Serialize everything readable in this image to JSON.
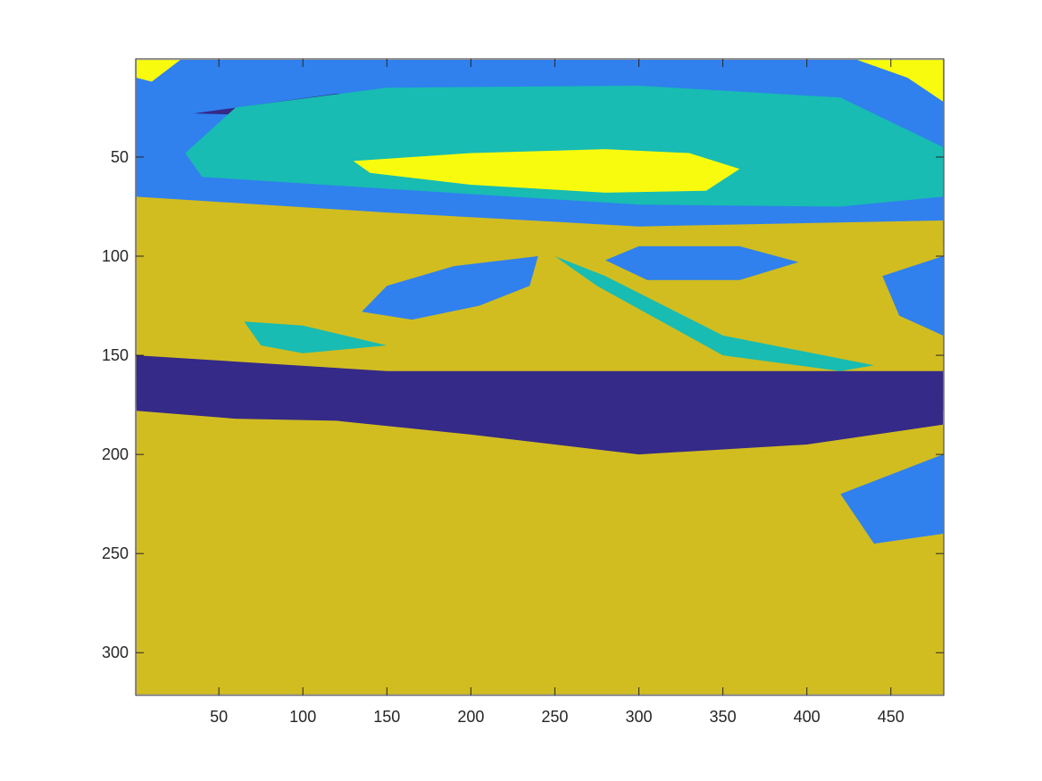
{
  "chart_data": {
    "type": "heatmap",
    "title": "",
    "xlabel": "",
    "ylabel": "",
    "xlim": [
      0.5,
      481.5
    ],
    "ylim": [
      0.5,
      321.5
    ],
    "y_direction": "reverse",
    "xticks": [
      50,
      100,
      150,
      200,
      250,
      300,
      350,
      400,
      450
    ],
    "yticks": [
      50,
      100,
      150,
      200,
      250,
      300
    ],
    "xtick_labels": [
      "50",
      "100",
      "150",
      "200",
      "250",
      "300",
      "350",
      "400",
      "450"
    ],
    "ytick_labels": [
      "50",
      "100",
      "150",
      "200",
      "250",
      "300"
    ],
    "grid": false,
    "colormap": "parula",
    "levels": [
      1,
      2,
      3,
      4,
      5
    ],
    "level_colors": [
      "#352a87",
      "#3080ee",
      "#18bcb2",
      "#d1bd20",
      "#f9fb0e"
    ],
    "regions": [
      {
        "level": 1,
        "polygon": [
          [
            1,
            1
          ],
          [
            481,
            1
          ],
          [
            481,
            321
          ],
          [
            1,
            321
          ]
        ]
      },
      {
        "level": 2,
        "polygon": [
          [
            1,
            1
          ],
          [
            481,
            1
          ],
          [
            481,
            95
          ],
          [
            300,
            88
          ],
          [
            150,
            80
          ],
          [
            1,
            72
          ]
        ]
      },
      {
        "level": 4,
        "polygon": [
          [
            1,
            70
          ],
          [
            150,
            78
          ],
          [
            300,
            85
          ],
          [
            481,
            82
          ],
          [
            481,
            170
          ],
          [
            300,
            168
          ],
          [
            150,
            160
          ],
          [
            1,
            160
          ]
        ]
      },
      {
        "level": 4,
        "polygon": [
          [
            1,
            178
          ],
          [
            60,
            182
          ],
          [
            120,
            183
          ],
          [
            200,
            190
          ],
          [
            300,
            200
          ],
          [
            400,
            195
          ],
          [
            481,
            185
          ],
          [
            481,
            321
          ],
          [
            1,
            321
          ]
        ]
      },
      {
        "level": 1,
        "polygon": [
          [
            1,
            150
          ],
          [
            150,
            158
          ],
          [
            300,
            158
          ],
          [
            481,
            158
          ],
          [
            481,
            178
          ],
          [
            300,
            195
          ],
          [
            200,
            186
          ],
          [
            100,
            180
          ],
          [
            1,
            176
          ]
        ]
      },
      {
        "level": 1,
        "polygon": [
          [
            35,
            28
          ],
          [
            120,
            18
          ],
          [
            230,
            20
          ],
          [
            310,
            22
          ],
          [
            230,
            26
          ],
          [
            120,
            30
          ]
        ]
      },
      {
        "level": 3,
        "polygon": [
          [
            30,
            48
          ],
          [
            60,
            25
          ],
          [
            150,
            15
          ],
          [
            300,
            14
          ],
          [
            420,
            20
          ],
          [
            481,
            45
          ],
          [
            481,
            70
          ],
          [
            420,
            75
          ],
          [
            300,
            74
          ],
          [
            150,
            66
          ],
          [
            40,
            60
          ]
        ]
      },
      {
        "level": 5,
        "polygon": [
          [
            130,
            52
          ],
          [
            200,
            48
          ],
          [
            280,
            46
          ],
          [
            330,
            48
          ],
          [
            360,
            56
          ],
          [
            340,
            67
          ],
          [
            280,
            68
          ],
          [
            200,
            64
          ],
          [
            140,
            58
          ]
        ]
      },
      {
        "level": 5,
        "polygon": [
          [
            1,
            1
          ],
          [
            27,
            1
          ],
          [
            10,
            12
          ],
          [
            1,
            10
          ]
        ]
      },
      {
        "level": 5,
        "polygon": [
          [
            430,
            1
          ],
          [
            481,
            1
          ],
          [
            481,
            22
          ],
          [
            460,
            10
          ]
        ]
      },
      {
        "level": 2,
        "polygon": [
          [
            135,
            128
          ],
          [
            150,
            115
          ],
          [
            190,
            105
          ],
          [
            240,
            100
          ],
          [
            235,
            115
          ],
          [
            205,
            125
          ],
          [
            165,
            132
          ]
        ]
      },
      {
        "level": 2,
        "polygon": [
          [
            280,
            102
          ],
          [
            300,
            95
          ],
          [
            360,
            95
          ],
          [
            395,
            103
          ],
          [
            360,
            112
          ],
          [
            305,
            112
          ]
        ]
      },
      {
        "level": 3,
        "polygon": [
          [
            65,
            133
          ],
          [
            100,
            135
          ],
          [
            150,
            145
          ],
          [
            100,
            149
          ],
          [
            75,
            145
          ]
        ]
      },
      {
        "level": 2,
        "polygon": [
          [
            445,
            110
          ],
          [
            481,
            100
          ],
          [
            481,
            140
          ],
          [
            455,
            130
          ]
        ]
      },
      {
        "level": 2,
        "polygon": [
          [
            420,
            220
          ],
          [
            481,
            200
          ],
          [
            481,
            240
          ],
          [
            440,
            245
          ]
        ]
      },
      {
        "level": 3,
        "polygon": [
          [
            250,
            100
          ],
          [
            280,
            110
          ],
          [
            350,
            140
          ],
          [
            440,
            155
          ],
          [
            420,
            158
          ],
          [
            350,
            150
          ],
          [
            275,
            115
          ]
        ]
      }
    ]
  }
}
